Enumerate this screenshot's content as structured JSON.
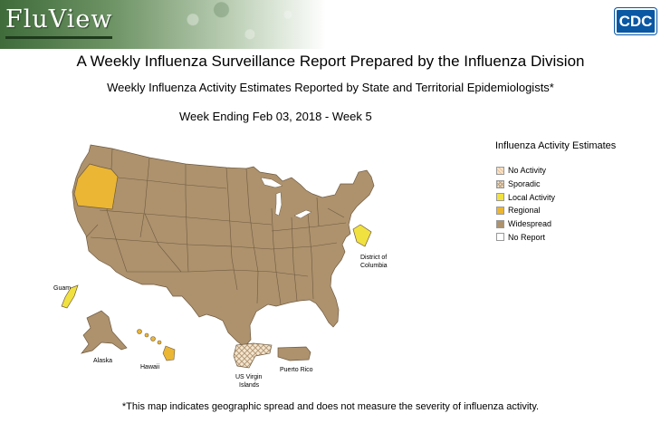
{
  "header": {
    "logo_text": "FluView",
    "agency_logo_text": "CDC",
    "title": "A Weekly Influenza Surveillance Report Prepared by the Influenza Division",
    "subtitle": "Weekly Influenza Activity Estimates Reported by State and Territorial Epidemiologists*",
    "week": "Week Ending Feb 03, 2018 - Week 5"
  },
  "legend": {
    "title": "Influenza Activity Estimates",
    "items": [
      {
        "label": "No Activity",
        "color": "#fbe5c8",
        "pattern": "light-hatch"
      },
      {
        "label": "Sporadic",
        "color": "#f4e7d0",
        "pattern": "crosshatch"
      },
      {
        "label": "Local Activity",
        "color": "#f1e140",
        "pattern": "solid"
      },
      {
        "label": "Regional",
        "color": "#eab634",
        "pattern": "solid"
      },
      {
        "label": "Widespread",
        "color": "#ad926d",
        "pattern": "solid"
      },
      {
        "label": "No Report",
        "color": "#ffffff",
        "pattern": "solid"
      }
    ]
  },
  "map": {
    "default_level": "Widespread",
    "jurisdictions": [
      {
        "name": "Oregon",
        "level": "Regional",
        "color": "#eab634"
      },
      {
        "name": "District of Columbia",
        "level": "Local Activity",
        "color": "#f1e140"
      },
      {
        "name": "Guam",
        "level": "Local Activity",
        "color": "#f1e140"
      },
      {
        "name": "Hawaii",
        "level": "Regional",
        "color": "#eab634"
      },
      {
        "name": "US Virgin Islands",
        "level": "Sporadic",
        "color": "#f4e7d0"
      },
      {
        "name": "Puerto Rico",
        "level": "Widespread",
        "color": "#ad926d"
      },
      {
        "name": "Alaska",
        "level": "Widespread",
        "color": "#ad926d"
      }
    ],
    "labels": {
      "dc_line1": "District of",
      "dc_line2": "Columbia",
      "guam": "Guam",
      "alaska": "Alaska",
      "hawaii": "Hawaii",
      "usvi_line1": "US Virgin",
      "usvi_line2": "Islands",
      "puerto_rico": "Puerto Rico"
    }
  },
  "footnote": "*This map indicates geographic spread and does not measure the severity of influenza activity."
}
